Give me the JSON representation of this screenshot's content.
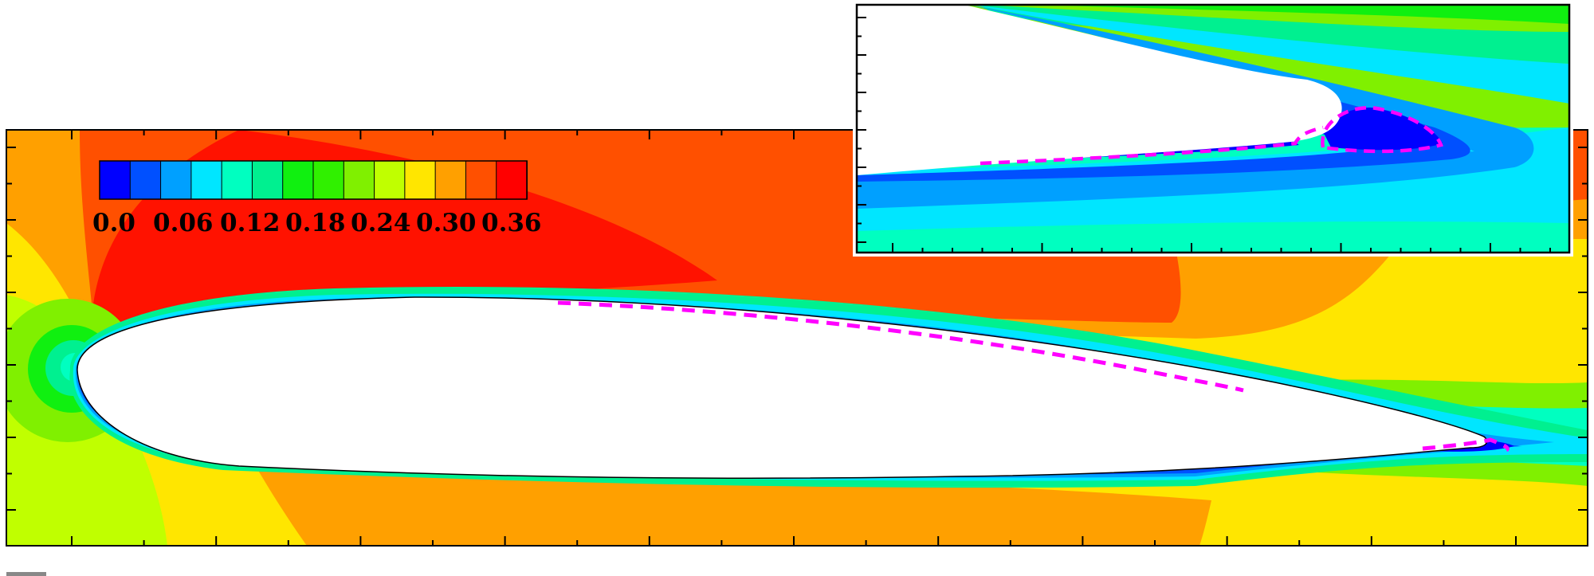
{
  "colorbar": {
    "labels": [
      "0.0",
      "0.06",
      "0.12",
      "0.18",
      "0.24",
      "0.30",
      "0.36"
    ],
    "swatches": [
      "#0000ff",
      "#0050ff",
      "#00a0ff",
      "#00e6ff",
      "#00ffc0",
      "#00f090",
      "#10f010",
      "#30f000",
      "#80f000",
      "#c0ff00",
      "#ffe600",
      "#ffa000",
      "#ff5000",
      "#ff0000"
    ]
  },
  "palette": {
    "red": "#ff1200",
    "red_orange": "#ff5000",
    "orange": "#ffa000",
    "yellow": "#ffe600",
    "yellow_green": "#c0ff00",
    "light_green": "#80f000",
    "green": "#10f010",
    "spring_green": "#00f090",
    "aqua_green": "#00ffc0",
    "cyan": "#00e6ff",
    "sky_blue": "#00a0ff",
    "blue": "#0050ff",
    "deep_blue": "#0000ff",
    "contour_line": "#ff00ff"
  },
  "icons": {
    "airfoil": "airfoil-body",
    "inset": "trailing-edge-zoom-inset"
  }
}
